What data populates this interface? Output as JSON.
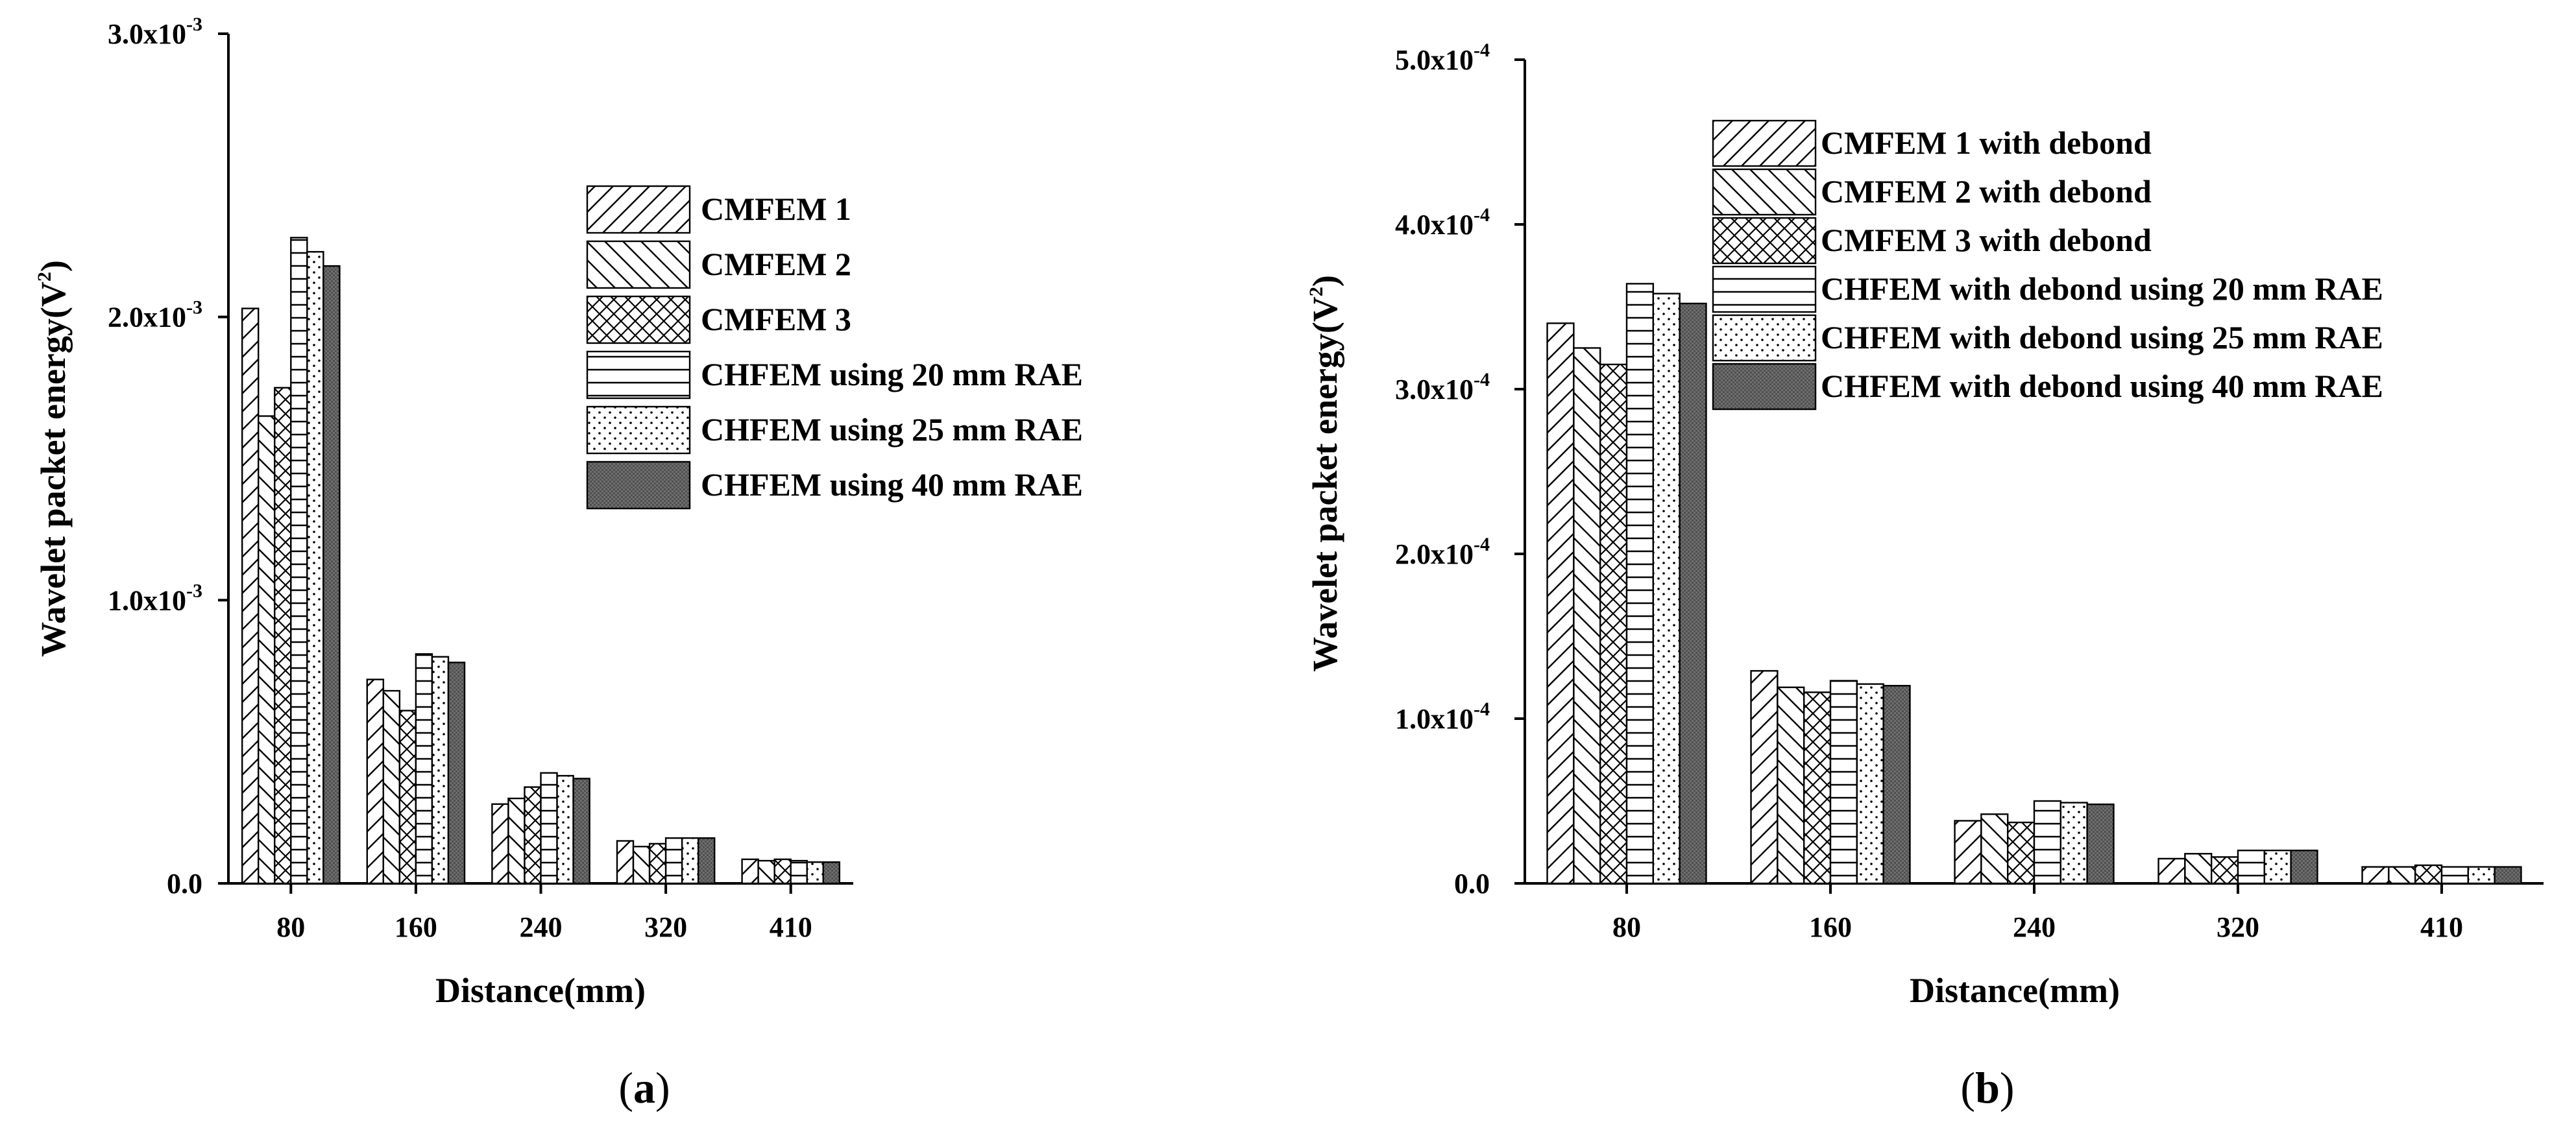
{
  "chart_data": [
    {
      "type": "bar",
      "panel_label": [
        "(",
        "a",
        ")"
      ],
      "categories": [
        "80",
        "160",
        "240",
        "320",
        "410"
      ],
      "xlabel": "Distance(mm)",
      "ylabel": {
        "text": "Wavelet packet energy(V",
        "sup": "2",
        "end": ")"
      },
      "ylim": [
        0,
        0.003
      ],
      "yticks": [
        {
          "value": 0,
          "label": "0.0",
          "exp": ""
        },
        {
          "value": 0.001,
          "label": "1.0x10",
          "exp": "-3"
        },
        {
          "value": 0.002,
          "label": "2.0x10",
          "exp": "-3"
        },
        {
          "value": 0.003,
          "label": "3.0x10",
          "exp": "-3"
        }
      ],
      "legend_position": "right",
      "series": [
        {
          "name": "CMFEM 1",
          "pattern": "diag-forward",
          "values": [
            0.00203,
            0.00072,
            0.00028,
            0.00015,
            8.5e-05
          ]
        },
        {
          "name": "CMFEM 2",
          "pattern": "diag-backward",
          "values": [
            0.00165,
            0.00068,
            0.0003,
            0.00013,
            8e-05
          ]
        },
        {
          "name": "CMFEM 3",
          "pattern": "crosshatch",
          "values": [
            0.00175,
            0.00061,
            0.00034,
            0.00014,
            8.5e-05
          ]
        },
        {
          "name": "CHFEM using 20 mm RAE",
          "pattern": "horizontal",
          "values": [
            0.00228,
            0.00081,
            0.00039,
            0.00016,
            8e-05
          ]
        },
        {
          "name": "CHFEM using 25 mm RAE",
          "pattern": "dots",
          "values": [
            0.00223,
            0.0008,
            0.00038,
            0.00016,
            7.5e-05
          ]
        },
        {
          "name": "CHFEM using 40 mm RAE",
          "pattern": "dense",
          "values": [
            0.00218,
            0.00078,
            0.00037,
            0.00016,
            7.5e-05
          ]
        }
      ]
    },
    {
      "type": "bar",
      "panel_label": [
        "(",
        "b",
        ")"
      ],
      "categories": [
        "80",
        "160",
        "240",
        "320",
        "410"
      ],
      "xlabel": "Distance(mm)",
      "ylabel": {
        "text": "Wavelet packet energy(V",
        "sup": "2",
        "end": ")"
      },
      "ylim": [
        0,
        0.0005
      ],
      "yticks": [
        {
          "value": 0,
          "label": "0.0",
          "exp": ""
        },
        {
          "value": 0.0001,
          "label": "1.0x10",
          "exp": "-4"
        },
        {
          "value": 0.0002,
          "label": "2.0x10",
          "exp": "-4"
        },
        {
          "value": 0.0003,
          "label": "3.0x10",
          "exp": "-4"
        },
        {
          "value": 0.0004,
          "label": "4.0x10",
          "exp": "-4"
        },
        {
          "value": 0.0005,
          "label": "5.0x10",
          "exp": "-4"
        }
      ],
      "legend_position": "top-right",
      "series": [
        {
          "name": "CMFEM 1 with debond",
          "pattern": "diag-forward",
          "values": [
            0.00034,
            0.000129,
            3.8e-05,
            1.5e-05,
            1e-05
          ]
        },
        {
          "name": "CMFEM 2 with debond",
          "pattern": "diag-backward",
          "values": [
            0.000325,
            0.000119,
            4.2e-05,
            1.8e-05,
            1e-05
          ]
        },
        {
          "name": "CMFEM 3 with debond",
          "pattern": "crosshatch",
          "values": [
            0.000315,
            0.000116,
            3.7e-05,
            1.6e-05,
            1.1e-05
          ]
        },
        {
          "name": "CHFEM with debond using 20 mm RAE",
          "pattern": "horizontal",
          "values": [
            0.000364,
            0.000123,
            5e-05,
            2e-05,
            1e-05
          ]
        },
        {
          "name": "CHFEM with debond using 25 mm RAE",
          "pattern": "dots",
          "values": [
            0.000358,
            0.000121,
            4.9e-05,
            2e-05,
            1e-05
          ]
        },
        {
          "name": "CHFEM with debond using 40 mm RAE",
          "pattern": "dense",
          "values": [
            0.000352,
            0.00012,
            4.8e-05,
            2e-05,
            1e-05
          ]
        }
      ]
    }
  ]
}
